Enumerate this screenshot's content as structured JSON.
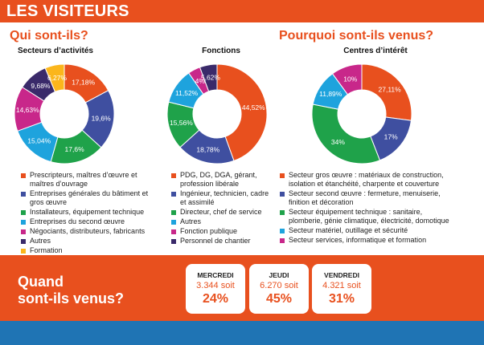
{
  "header": {
    "title": "LES VISITEURS"
  },
  "sections": {
    "who": "Qui sont-ils?",
    "why": "Pourquoi sont-ils venus?"
  },
  "chart_data": [
    {
      "type": "pie",
      "title": "Secteurs d’activités",
      "colors": [
        "#e8501e",
        "#3f4fa0",
        "#1fa24a",
        "#1ea3dd",
        "#c8278a",
        "#3a2a6a",
        "#fbb61c"
      ],
      "slices": [
        {
          "label": "Prescripteurs, maîtres d’œuvre et maîtres d’ouvrage",
          "value": 17.18,
          "value_label": "17,18%"
        },
        {
          "label": "Entreprises générales du bâtiment et gros œuvre",
          "value": 19.6,
          "value_label": "19,6%"
        },
        {
          "label": "Installateurs, équipement technique",
          "value": 17.6,
          "value_label": "17,6%"
        },
        {
          "label": "Entreprises du second œuvre",
          "value": 15.04,
          "value_label": "15,04%"
        },
        {
          "label": "Négociants, distributeurs, fabricants",
          "value": 14.63,
          "value_label": "14,63%"
        },
        {
          "label": "Autres",
          "value": 9.68,
          "value_label": "9,68%"
        },
        {
          "label": "Formation",
          "value": 6.27,
          "value_label": "6,27%"
        }
      ]
    },
    {
      "type": "pie",
      "title": "Fonctions",
      "colors": [
        "#e8501e",
        "#3f4fa0",
        "#1fa24a",
        "#1ea3dd",
        "#c8278a",
        "#3a2a6a"
      ],
      "slices": [
        {
          "label": "PDG, DG, DGA, gérant, profession libérale",
          "value": 44.52,
          "value_label": "44,52%"
        },
        {
          "label": "Ingénieur, technicien, cadre et assimilé",
          "value": 18.78,
          "value_label": "18,78%"
        },
        {
          "label": "Directeur, chef de service",
          "value": 15.56,
          "value_label": "15,56%"
        },
        {
          "label": "Autres",
          "value": 11.52,
          "value_label": "11,52%"
        },
        {
          "label": "Fonction publique",
          "value": 4,
          "value_label": "4%"
        },
        {
          "label": "Personnel de chantier",
          "value": 5.62,
          "value_label": "5,62%"
        }
      ]
    },
    {
      "type": "pie",
      "title": "Centres d’intérêt",
      "colors": [
        "#e8501e",
        "#3f4fa0",
        "#1fa24a",
        "#1ea3dd",
        "#c8278a"
      ],
      "slices": [
        {
          "label": "Secteur gros œuvre : matériaux de construction, isolation et étanchéité, charpente et couverture",
          "value": 27.11,
          "value_label": "27,11%"
        },
        {
          "label": "Secteur second œuvre : fermeture, menuiserie, finition et décoration",
          "value": 17,
          "value_label": "17%"
        },
        {
          "label": "Secteur équipement technique : sanitaire, plomberie, génie climatique, électricité, domotique",
          "value": 34,
          "value_label": "34%"
        },
        {
          "label": "Secteur matériel, outillage et sécurité",
          "value": 11.89,
          "value_label": "11,89%"
        },
        {
          "label": "Secteur services, informatique et formation",
          "value": 10,
          "value_label": "10%"
        }
      ]
    }
  ],
  "when": {
    "title_line1": "Quand",
    "title_line2": "sont-ils venus?",
    "days": [
      {
        "day": "MERCREDI",
        "count": "3.344 soit",
        "percent": "24%"
      },
      {
        "day": "JEUDI",
        "count": "6.270 soit",
        "percent": "45%"
      },
      {
        "day": "VENDREDI",
        "count": "4.321 soit",
        "percent": "31%"
      }
    ]
  }
}
